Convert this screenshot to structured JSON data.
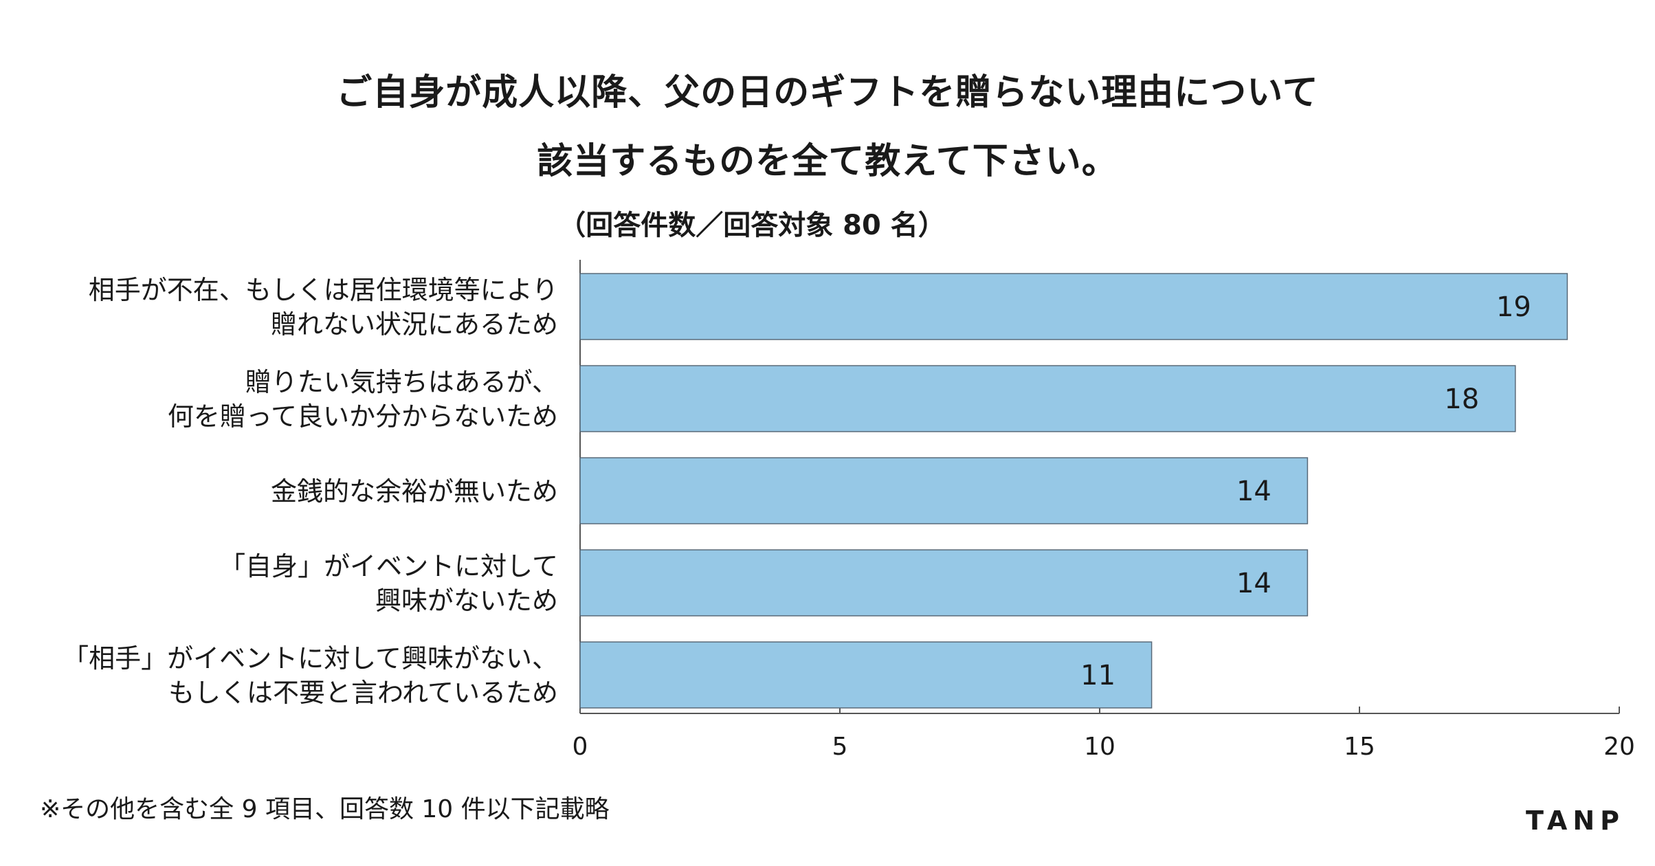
{
  "chart_data": {
    "type": "bar",
    "orientation": "horizontal",
    "title_lines": [
      "ご自身が成人以降、父の日のギフトを贈らない理由について",
      "該当するものを全て教えて下さい。"
    ],
    "subtitle": "（回答件数／回答対象 80 名）",
    "categories": [
      [
        "相手が不在、もしくは居住環境等により",
        "贈れない状況にあるため"
      ],
      [
        "贈りたい気持ちはあるが、",
        "何を贈って良いか分からないため"
      ],
      [
        "金銭的な余裕が無いため"
      ],
      [
        "「自身」がイベントに対して",
        "興味がないため"
      ],
      [
        "「相手」がイベントに対して興味がない、",
        "もしくは不要と言われているため"
      ]
    ],
    "values": [
      19,
      18,
      14,
      14,
      11
    ],
    "value_labels": [
      "19",
      "18",
      "14",
      "14",
      "11"
    ],
    "xlim": [
      0,
      20
    ],
    "x_ticks": [
      0,
      5,
      10,
      15,
      20
    ],
    "x_tick_labels": [
      "0",
      "5",
      "10",
      "15",
      "20"
    ],
    "bar_color": "#96c8e6",
    "bar_border_color": "#5a6a78",
    "grid": false,
    "legend": "none"
  },
  "footnote": "※その他を含む全 9 項目、回答数 10 件以下記載略",
  "logo": "TANP"
}
